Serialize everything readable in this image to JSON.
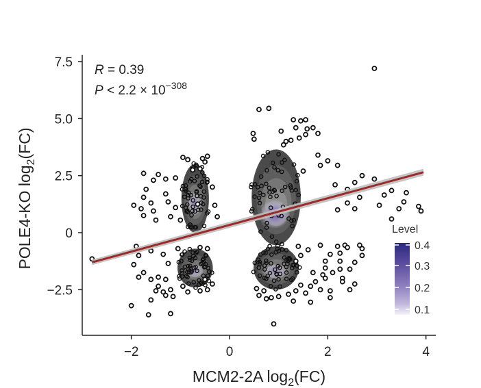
{
  "chart_data": {
    "type": "scatter",
    "xlabel_main": "MCM2-2A log",
    "xlabel_sub": "2",
    "xlabel_tail": "(FC)",
    "ylabel_main": "POLE4-KO log",
    "ylabel_sub": "2",
    "ylabel_tail": "(FC)",
    "xlim": [
      -3.0,
      4.2
    ],
    "ylim": [
      -4.5,
      7.8
    ],
    "x_ticks": [
      -2,
      0,
      2,
      4
    ],
    "x_tick_labels": [
      "−2",
      "0",
      "2",
      "4"
    ],
    "y_ticks": [
      7.5,
      5.0,
      2.5,
      0,
      -2.5
    ],
    "y_tick_labels": [
      "7.5",
      "5.0",
      "2.5",
      "0",
      "−2.5"
    ],
    "annotation": {
      "r_label": "R",
      "r_value": " = 0.39",
      "p_label": "P",
      "p_value": " < 2.2 × 10",
      "p_exponent": "−308"
    },
    "regression": {
      "x": [
        -2.8,
        3.95
      ],
      "y": [
        -1.3,
        2.65
      ],
      "color": "#9b2b2b",
      "ci_color": "#bfbfbf"
    },
    "density_clusters": [
      {
        "cx": -0.7,
        "cy": 1.5,
        "rx": 0.28,
        "ry": 1.5
      },
      {
        "cx": 0.95,
        "cy": 1.55,
        "rx": 0.5,
        "ry": 2.1
      },
      {
        "cx": -0.7,
        "cy": -1.55,
        "rx": 0.36,
        "ry": 0.85
      },
      {
        "cx": 0.95,
        "cy": -1.55,
        "rx": 0.46,
        "ry": 0.95
      }
    ],
    "outliers": [
      [
        2.95,
        7.2
      ],
      [
        0.6,
        5.4
      ],
      [
        0.8,
        5.45
      ],
      [
        1.3,
        4.95
      ],
      [
        1.45,
        4.9
      ],
      [
        1.55,
        4.95
      ],
      [
        1.35,
        4.6
      ],
      [
        1.7,
        4.6
      ],
      [
        1.58,
        4.55
      ],
      [
        1.55,
        4.3
      ],
      [
        1.05,
        4.45
      ],
      [
        1.15,
        4.0
      ],
      [
        0.48,
        4.35
      ],
      [
        1.25,
        4.05
      ],
      [
        1.8,
        4.35
      ],
      [
        0.5,
        4.1
      ],
      [
        1.1,
        3.85
      ],
      [
        1.42,
        4.15
      ],
      [
        1.8,
        3.4
      ],
      [
        1.85,
        2.95
      ],
      [
        2.0,
        3.15
      ],
      [
        2.2,
        2.95
      ],
      [
        1.5,
        2.7
      ],
      [
        2.15,
        2.1
      ],
      [
        2.55,
        2.2
      ],
      [
        2.7,
        2.5
      ],
      [
        2.95,
        2.35
      ],
      [
        2.4,
        1.9
      ],
      [
        3.15,
        1.65
      ],
      [
        3.05,
        1.2
      ],
      [
        3.3,
        1.85
      ],
      [
        3.6,
        1.75
      ],
      [
        3.55,
        1.35
      ],
      [
        3.45,
        1.05
      ],
      [
        3.85,
        1.15
      ],
      [
        3.9,
        0.95
      ],
      [
        3.3,
        0.6
      ],
      [
        2.65,
        1.55
      ],
      [
        2.4,
        1.3
      ],
      [
        2.2,
        1.0
      ],
      [
        2.55,
        1.05
      ],
      [
        -1.75,
        2.6
      ],
      [
        -1.45,
        2.55
      ],
      [
        -1.55,
        2.3
      ],
      [
        -1.3,
        2.35
      ],
      [
        -1.1,
        2.4
      ],
      [
        -1.7,
        1.9
      ],
      [
        -1.75,
        1.55
      ],
      [
        -1.6,
        1.3
      ],
      [
        -1.8,
        1.05
      ],
      [
        -1.55,
        0.95
      ],
      [
        -1.75,
        0.75
      ],
      [
        -1.5,
        0.55
      ],
      [
        -1.95,
        1.2
      ],
      [
        -1.3,
        1.7
      ],
      [
        -1.2,
        0.7
      ],
      [
        -0.95,
        3.3
      ],
      [
        -0.85,
        3.2
      ],
      [
        -0.55,
        3.25
      ],
      [
        -0.5,
        3.1
      ],
      [
        -0.45,
        3.35
      ],
      [
        -0.6,
        2.8
      ],
      [
        -0.75,
        2.75
      ],
      [
        -0.35,
        2.0
      ],
      [
        -0.3,
        1.2
      ],
      [
        -0.25,
        0.7
      ],
      [
        -0.65,
        1.25
      ],
      [
        -1.0,
        0.55
      ],
      [
        -1.1,
        1.1
      ],
      [
        -1.25,
        1.35
      ],
      [
        -2.8,
        -1.15
      ],
      [
        -1.9,
        -0.6
      ],
      [
        -1.85,
        -1.0
      ],
      [
        -1.95,
        -1.4
      ],
      [
        -1.75,
        -1.75
      ],
      [
        -1.85,
        -1.95
      ],
      [
        -1.6,
        -2.05
      ],
      [
        -1.45,
        -1.95
      ],
      [
        -1.3,
        -2.05
      ],
      [
        -1.45,
        -2.35
      ],
      [
        -1.2,
        -2.5
      ],
      [
        -1.35,
        -2.6
      ],
      [
        -1.5,
        -2.55
      ],
      [
        -0.95,
        -2.35
      ],
      [
        -0.85,
        -2.6
      ],
      [
        -0.6,
        -2.55
      ],
      [
        -0.45,
        -2.5
      ],
      [
        -0.35,
        -2.25
      ],
      [
        -0.5,
        -2.05
      ],
      [
        -0.45,
        -0.7
      ],
      [
        -0.6,
        -0.65
      ],
      [
        -1.05,
        -0.7
      ],
      [
        -1.25,
        -1.35
      ],
      [
        -1.35,
        -0.95
      ],
      [
        -1.6,
        -0.8
      ],
      [
        -1.15,
        -2.8
      ],
      [
        -1.3,
        -2.75
      ],
      [
        -1.6,
        -2.95
      ],
      [
        -2.0,
        -3.2
      ],
      [
        -1.65,
        -3.6
      ],
      [
        -1.2,
        -3.55
      ],
      [
        1.4,
        -0.6
      ],
      [
        1.6,
        -0.75
      ],
      [
        1.85,
        -0.55
      ],
      [
        2.2,
        -0.6
      ],
      [
        2.35,
        -0.55
      ],
      [
        2.4,
        -0.65
      ],
      [
        2.65,
        -0.55
      ],
      [
        2.7,
        -0.7
      ],
      [
        2.7,
        -1.0
      ],
      [
        2.25,
        -0.9
      ],
      [
        2.05,
        -0.95
      ],
      [
        1.95,
        -1.25
      ],
      [
        2.25,
        -1.25
      ],
      [
        2.55,
        -1.3
      ],
      [
        2.45,
        -1.6
      ],
      [
        2.25,
        -1.6
      ],
      [
        1.95,
        -1.55
      ],
      [
        1.7,
        -1.75
      ],
      [
        2.1,
        -1.75
      ],
      [
        1.9,
        -1.85
      ],
      [
        1.95,
        -2.0
      ],
      [
        2.3,
        -2.0
      ],
      [
        1.75,
        -2.15
      ],
      [
        2.3,
        -2.15
      ],
      [
        2.55,
        -2.25
      ],
      [
        2.45,
        -2.5
      ],
      [
        2.05,
        -2.55
      ],
      [
        1.85,
        -2.5
      ],
      [
        1.55,
        -2.65
      ],
      [
        1.35,
        -2.55
      ],
      [
        1.2,
        -2.7
      ],
      [
        1.3,
        -3.0
      ],
      [
        1.0,
        -2.8
      ],
      [
        0.85,
        -2.85
      ],
      [
        0.75,
        -2.9
      ],
      [
        0.6,
        -2.75
      ],
      [
        0.55,
        -2.45
      ],
      [
        0.7,
        -2.55
      ],
      [
        2.05,
        -2.85
      ],
      [
        1.45,
        -2.3
      ],
      [
        1.65,
        -2.35
      ],
      [
        0.9,
        -4.0
      ],
      [
        1.65,
        -3.05
      ],
      [
        1.45,
        -1.0
      ],
      [
        1.35,
        -1.25
      ]
    ]
  },
  "legend": {
    "title": "Level",
    "labels": [
      "0.4",
      "0.3",
      "0.2",
      "0.1"
    ],
    "colors": [
      "#2b2a7f",
      "#5d4ea0",
      "#8e7fbf",
      "#c2b8dc",
      "#f4f2fa"
    ]
  }
}
